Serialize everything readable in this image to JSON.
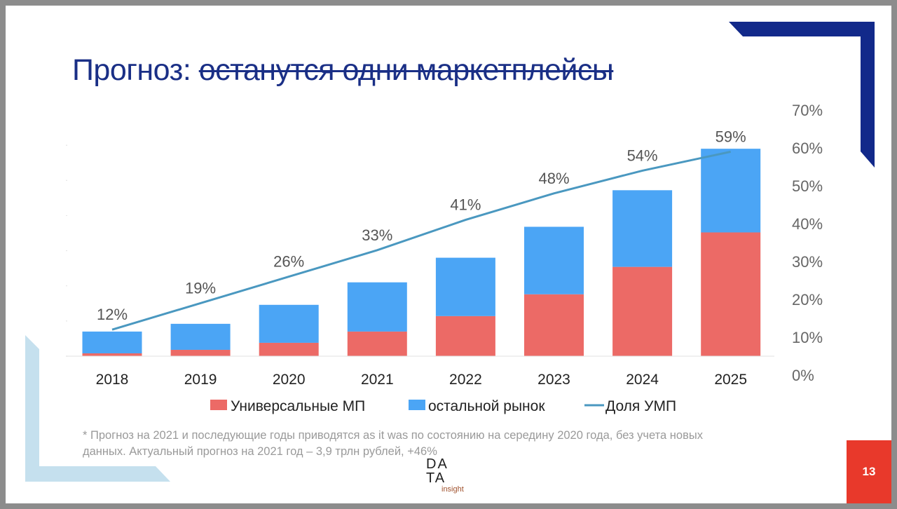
{
  "slide": {
    "title_prefix": "Прогноз: ",
    "title_struck": "останутся одни маркетплейсы",
    "footnote_line1": "* Прогноз на 2021 и последующие годы приводятся as it was по состоянию на середину 2020 года, без учета новых",
    "footnote_line2": "данных. Актуальный прогноз на 2021 год – 3,9 трлн рублей, +46%",
    "page_number": "13",
    "logo": {
      "line1": "DA",
      "line2": "TA",
      "line3": "insight"
    }
  },
  "colors": {
    "title": "#1a2f86",
    "red": "#ec6a66",
    "blue": "#4ba5f5",
    "line": "#4a98c0",
    "accent_blue": "#12298a",
    "light_blue": "#c5e0ee",
    "page_red": "#e8392b"
  },
  "chart_data": {
    "type": "bar",
    "stacked": true,
    "categories": [
      "2018",
      "2019",
      "2020",
      "2021",
      "2022",
      "2023",
      "2024",
      "2025"
    ],
    "series": [
      {
        "name": "Универсальные МП",
        "type": "bar",
        "values": [
          0.4,
          0.9,
          1.9,
          3.5,
          5.7,
          8.8,
          12.7,
          17.6
        ]
      },
      {
        "name": "остальной рынок",
        "type": "bar",
        "values": [
          3.1,
          3.7,
          5.4,
          7.0,
          8.3,
          9.6,
          10.9,
          11.9
        ]
      },
      {
        "name": "Доля УМП",
        "type": "line",
        "axis": "right",
        "values": [
          12,
          19,
          26,
          33,
          41,
          48,
          54,
          59
        ],
        "labels": [
          "12%",
          "19%",
          "26%",
          "33%",
          "41%",
          "48%",
          "54%",
          "59%"
        ]
      }
    ],
    "right_axis": {
      "ylim": [
        0,
        70
      ],
      "ticks": [
        "0%",
        "10%",
        "20%",
        "30%",
        "40%",
        "50%",
        "60%",
        "70%"
      ]
    },
    "left_axis_ylim": [
      0,
      35
    ],
    "legend": [
      "Универсальные МП",
      "остальной рынок",
      "Доля УМП"
    ],
    "legend_position": "bottom"
  }
}
